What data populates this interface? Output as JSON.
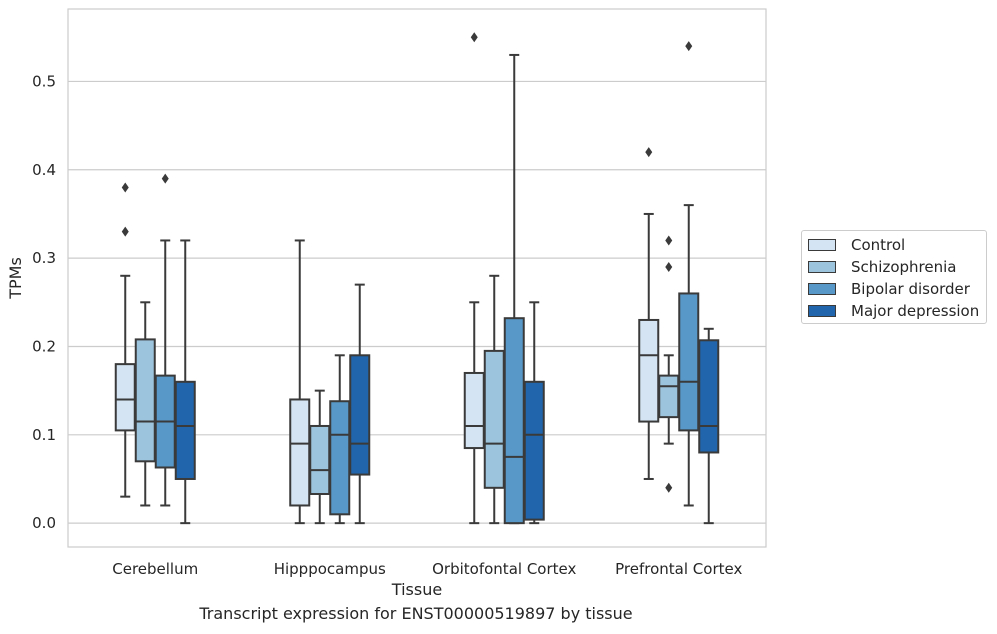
{
  "caption": "Transcript expression for ENST00000519897 by tissue",
  "chart_data": {
    "type": "boxplot",
    "xlabel": "Tissue",
    "ylabel": "TPMs",
    "ylim": [
      -0.027,
      0.582
    ],
    "yticks": [
      0.0,
      0.1,
      0.2,
      0.3,
      0.4,
      0.5
    ],
    "ytick_labels": [
      "0.0",
      "0.1",
      "0.2",
      "0.3",
      "0.4",
      "0.5"
    ],
    "grid": true,
    "legend_position": "right",
    "categories": [
      "Cerebellum",
      "Hipppocampus",
      "Orbitofontal Cortex",
      "Prefrontal Cortex"
    ],
    "series": [
      {
        "name": "Control",
        "color": "#d4e4f2",
        "boxes": [
          {
            "whislo": 0.03,
            "q1": 0.105,
            "median": 0.14,
            "q3": 0.18,
            "whishi": 0.28,
            "fliers": [
              0.33,
              0.38
            ]
          },
          {
            "whislo": 0.0,
            "q1": 0.02,
            "median": 0.09,
            "q3": 0.14,
            "whishi": 0.32,
            "fliers": []
          },
          {
            "whislo": 0.0,
            "q1": 0.085,
            "median": 0.11,
            "q3": 0.17,
            "whishi": 0.25,
            "fliers": [
              0.55
            ]
          },
          {
            "whislo": 0.05,
            "q1": 0.115,
            "median": 0.19,
            "q3": 0.23,
            "whishi": 0.35,
            "fliers": [
              0.42
            ]
          }
        ]
      },
      {
        "name": "Schizophrenia",
        "color": "#9cc4dc",
        "boxes": [
          {
            "whislo": 0.02,
            "q1": 0.07,
            "median": 0.115,
            "q3": 0.208,
            "whishi": 0.25,
            "fliers": []
          },
          {
            "whislo": 0.0,
            "q1": 0.033,
            "median": 0.06,
            "q3": 0.11,
            "whishi": 0.15,
            "fliers": []
          },
          {
            "whislo": 0.0,
            "q1": 0.04,
            "median": 0.09,
            "q3": 0.195,
            "whishi": 0.28,
            "fliers": []
          },
          {
            "whislo": 0.09,
            "q1": 0.12,
            "median": 0.155,
            "q3": 0.167,
            "whishi": 0.19,
            "fliers": [
              0.04,
              0.29,
              0.32
            ]
          }
        ]
      },
      {
        "name": "Bipolar disorder",
        "color": "#5798c8",
        "boxes": [
          {
            "whislo": 0.02,
            "q1": 0.063,
            "median": 0.115,
            "q3": 0.167,
            "whishi": 0.32,
            "fliers": [
              0.39
            ]
          },
          {
            "whislo": 0.0,
            "q1": 0.01,
            "median": 0.1,
            "q3": 0.138,
            "whishi": 0.19,
            "fliers": []
          },
          {
            "whislo": 0.0,
            "q1": 0.0,
            "median": 0.075,
            "q3": 0.232,
            "whishi": 0.53,
            "fliers": []
          },
          {
            "whislo": 0.02,
            "q1": 0.105,
            "median": 0.16,
            "q3": 0.26,
            "whishi": 0.36,
            "fliers": [
              0.54
            ]
          }
        ]
      },
      {
        "name": "Major depression",
        "color": "#2166ac",
        "boxes": [
          {
            "whislo": 0.0,
            "q1": 0.05,
            "median": 0.11,
            "q3": 0.16,
            "whishi": 0.32,
            "fliers": []
          },
          {
            "whislo": 0.0,
            "q1": 0.055,
            "median": 0.09,
            "q3": 0.19,
            "whishi": 0.27,
            "fliers": []
          },
          {
            "whislo": 0.0,
            "q1": 0.004,
            "median": 0.1,
            "q3": 0.16,
            "whishi": 0.25,
            "fliers": []
          },
          {
            "whislo": 0.0,
            "q1": 0.08,
            "median": 0.11,
            "q3": 0.207,
            "whishi": 0.22,
            "fliers": []
          }
        ]
      }
    ]
  }
}
